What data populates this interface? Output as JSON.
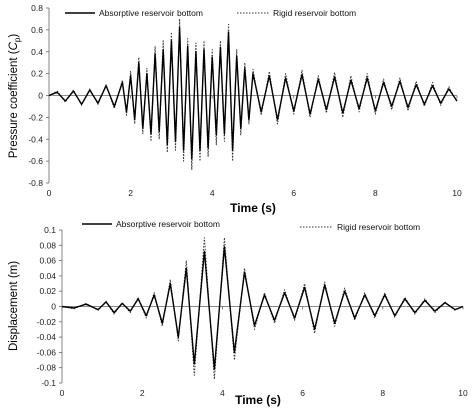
{
  "charts": [
    {
      "xlabel": "Time (s)",
      "ylabel": "Pressure coefficient (",
      "ylabel_sym": "C",
      "ylabel_sub": "p",
      "ylabel_end": ")",
      "legend": [
        "Absorptive reservoir bottom",
        "Rigid reservoir bottom"
      ]
    },
    {
      "xlabel": "Time (s)",
      "ylabel": "Displacement (m)",
      "legend": [
        "Absorptive reservoir bottom",
        "Rigid reservoir bottom"
      ]
    }
  ],
  "chart_data": [
    {
      "type": "line",
      "xlabel": "Time (s)",
      "ylabel": "Pressure coefficient (Cp)",
      "xlim": [
        0,
        10
      ],
      "ylim": [
        -0.8,
        0.8
      ],
      "xticks": [
        "0",
        "2",
        "4",
        "6",
        "8",
        "10"
      ],
      "yticks": [
        "0.8",
        "0.6",
        "0.4",
        "0.2",
        "0",
        "-0.2",
        "-0.4",
        "-0.6",
        "-0.8"
      ],
      "grid": false,
      "legend_position": "top",
      "series": [
        {
          "name": "Absorptive reservoir bottom",
          "style": "solid",
          "color": "#000000",
          "x": [
            0,
            0.2,
            0.4,
            0.6,
            0.8,
            1.0,
            1.2,
            1.4,
            1.6,
            1.8,
            1.9,
            2.0,
            2.1,
            2.2,
            2.3,
            2.4,
            2.5,
            2.6,
            2.7,
            2.8,
            2.9,
            3.0,
            3.1,
            3.2,
            3.3,
            3.4,
            3.5,
            3.6,
            3.7,
            3.8,
            3.9,
            4.0,
            4.1,
            4.2,
            4.3,
            4.4,
            4.5,
            4.6,
            4.7,
            4.8,
            4.9,
            5.0,
            5.2,
            5.4,
            5.6,
            5.8,
            6.0,
            6.2,
            6.4,
            6.6,
            6.8,
            7.0,
            7.2,
            7.4,
            7.6,
            7.8,
            8.0,
            8.2,
            8.4,
            8.6,
            8.8,
            9.0,
            9.2,
            9.4,
            9.6,
            9.8,
            10.0
          ],
          "y": [
            0,
            0.03,
            -0.05,
            0.04,
            -0.08,
            0.05,
            -0.07,
            0.09,
            -0.1,
            0.12,
            -0.15,
            0.18,
            -0.22,
            0.3,
            -0.3,
            0.2,
            -0.35,
            0.38,
            -0.33,
            0.42,
            -0.45,
            0.5,
            -0.42,
            0.62,
            -0.5,
            0.45,
            -0.58,
            0.4,
            -0.5,
            0.42,
            -0.48,
            0.35,
            -0.36,
            0.44,
            -0.35,
            0.58,
            -0.5,
            0.36,
            -0.3,
            0.25,
            -0.22,
            0.2,
            -0.15,
            0.18,
            -0.22,
            0.16,
            -0.14,
            0.19,
            -0.17,
            0.15,
            -0.13,
            0.17,
            -0.16,
            0.14,
            -0.12,
            0.16,
            -0.14,
            0.12,
            -0.1,
            0.13,
            -0.11,
            0.1,
            -0.08,
            0.09,
            -0.07,
            0.06,
            -0.05
          ]
        },
        {
          "name": "Rigid reservoir bottom",
          "style": "dotted",
          "color": "#333333",
          "x": [
            0,
            0.2,
            0.4,
            0.6,
            0.8,
            1.0,
            1.2,
            1.4,
            1.6,
            1.8,
            1.9,
            2.0,
            2.1,
            2.2,
            2.3,
            2.4,
            2.5,
            2.6,
            2.7,
            2.8,
            2.9,
            3.0,
            3.1,
            3.2,
            3.3,
            3.4,
            3.5,
            3.6,
            3.7,
            3.8,
            3.9,
            4.0,
            4.1,
            4.2,
            4.3,
            4.4,
            4.5,
            4.6,
            4.7,
            4.8,
            4.9,
            5.0,
            5.2,
            5.4,
            5.6,
            5.8,
            6.0,
            6.2,
            6.4,
            6.6,
            6.8,
            7.0,
            7.2,
            7.4,
            7.6,
            7.8,
            8.0,
            8.2,
            8.4,
            8.6,
            8.8,
            9.0,
            9.2,
            9.4,
            9.6,
            9.8,
            10.0
          ],
          "y": [
            0,
            0.04,
            -0.06,
            0.05,
            -0.09,
            0.06,
            -0.08,
            0.1,
            -0.12,
            0.14,
            -0.18,
            0.22,
            -0.26,
            0.35,
            -0.35,
            0.25,
            -0.42,
            0.45,
            -0.4,
            0.5,
            -0.52,
            0.58,
            -0.5,
            0.7,
            -0.6,
            0.52,
            -0.68,
            0.48,
            -0.6,
            0.5,
            -0.56,
            0.42,
            -0.45,
            0.5,
            -0.42,
            0.65,
            -0.6,
            0.42,
            -0.36,
            0.3,
            -0.26,
            0.24,
            -0.18,
            0.22,
            -0.26,
            0.2,
            -0.17,
            0.23,
            -0.2,
            0.18,
            -0.16,
            0.21,
            -0.2,
            0.18,
            -0.15,
            0.2,
            -0.17,
            0.15,
            -0.13,
            0.16,
            -0.14,
            0.13,
            -0.1,
            0.12,
            -0.09,
            0.08,
            -0.06
          ]
        }
      ]
    },
    {
      "type": "line",
      "xlabel": "Time (s)",
      "ylabel": "Displacement (m)",
      "xlim": [
        0,
        10
      ],
      "ylim": [
        -0.1,
        0.1
      ],
      "xticks": [
        "0",
        "2",
        "4",
        "6",
        "8",
        "10"
      ],
      "yticks": [
        "0.1",
        "0.08",
        "0.06",
        "0.04",
        "0.02",
        "0",
        "-0.02",
        "-0.04",
        "-0.06",
        "-0.08",
        "-0.1"
      ],
      "grid": false,
      "legend_position": "top",
      "series": [
        {
          "name": "Absorptive reservoir bottom",
          "style": "solid",
          "color": "#000000",
          "x": [
            0,
            0.3,
            0.6,
            0.9,
            1.1,
            1.3,
            1.5,
            1.7,
            1.9,
            2.1,
            2.3,
            2.5,
            2.7,
            2.9,
            3.1,
            3.3,
            3.55,
            3.8,
            4.05,
            4.3,
            4.55,
            4.8,
            5.05,
            5.3,
            5.55,
            5.8,
            6.05,
            6.3,
            6.55,
            6.8,
            7.05,
            7.3,
            7.55,
            7.8,
            8.05,
            8.3,
            8.55,
            8.8,
            9.05,
            9.3,
            9.55,
            9.8,
            10.0
          ],
          "y": [
            0,
            -0.002,
            0.003,
            -0.004,
            0.006,
            -0.008,
            0.004,
            -0.006,
            0.01,
            -0.012,
            0.015,
            -0.022,
            0.03,
            -0.04,
            0.05,
            -0.075,
            0.072,
            -0.082,
            0.078,
            -0.06,
            0.045,
            -0.025,
            0.015,
            -0.018,
            0.018,
            -0.015,
            0.025,
            -0.03,
            0.028,
            -0.022,
            0.02,
            -0.015,
            0.015,
            -0.012,
            0.015,
            -0.012,
            0.01,
            -0.008,
            0.008,
            -0.006,
            0.005,
            -0.004,
            0
          ]
        },
        {
          "name": "Rigid reservoir bottom",
          "style": "dotted",
          "color": "#333333",
          "x": [
            0,
            0.3,
            0.6,
            0.9,
            1.1,
            1.3,
            1.5,
            1.7,
            1.9,
            2.1,
            2.3,
            2.5,
            2.7,
            2.9,
            3.1,
            3.3,
            3.55,
            3.8,
            4.05,
            4.3,
            4.55,
            4.8,
            5.05,
            5.3,
            5.55,
            5.8,
            6.05,
            6.3,
            6.55,
            6.8,
            7.05,
            7.3,
            7.55,
            7.8,
            8.05,
            8.3,
            8.55,
            8.8,
            9.05,
            9.3,
            9.55,
            9.8,
            10.0
          ],
          "y": [
            0,
            -0.003,
            0.004,
            -0.005,
            0.007,
            -0.01,
            0.005,
            -0.008,
            0.012,
            -0.015,
            0.018,
            -0.026,
            0.035,
            -0.045,
            0.06,
            -0.09,
            0.09,
            -0.095,
            0.09,
            -0.07,
            0.05,
            -0.03,
            0.018,
            -0.022,
            0.022,
            -0.018,
            0.03,
            -0.035,
            0.032,
            -0.026,
            0.024,
            -0.018,
            0.018,
            -0.015,
            0.018,
            -0.014,
            0.012,
            -0.01,
            0.01,
            -0.008,
            0.006,
            -0.005,
            0
          ]
        }
      ]
    }
  ]
}
